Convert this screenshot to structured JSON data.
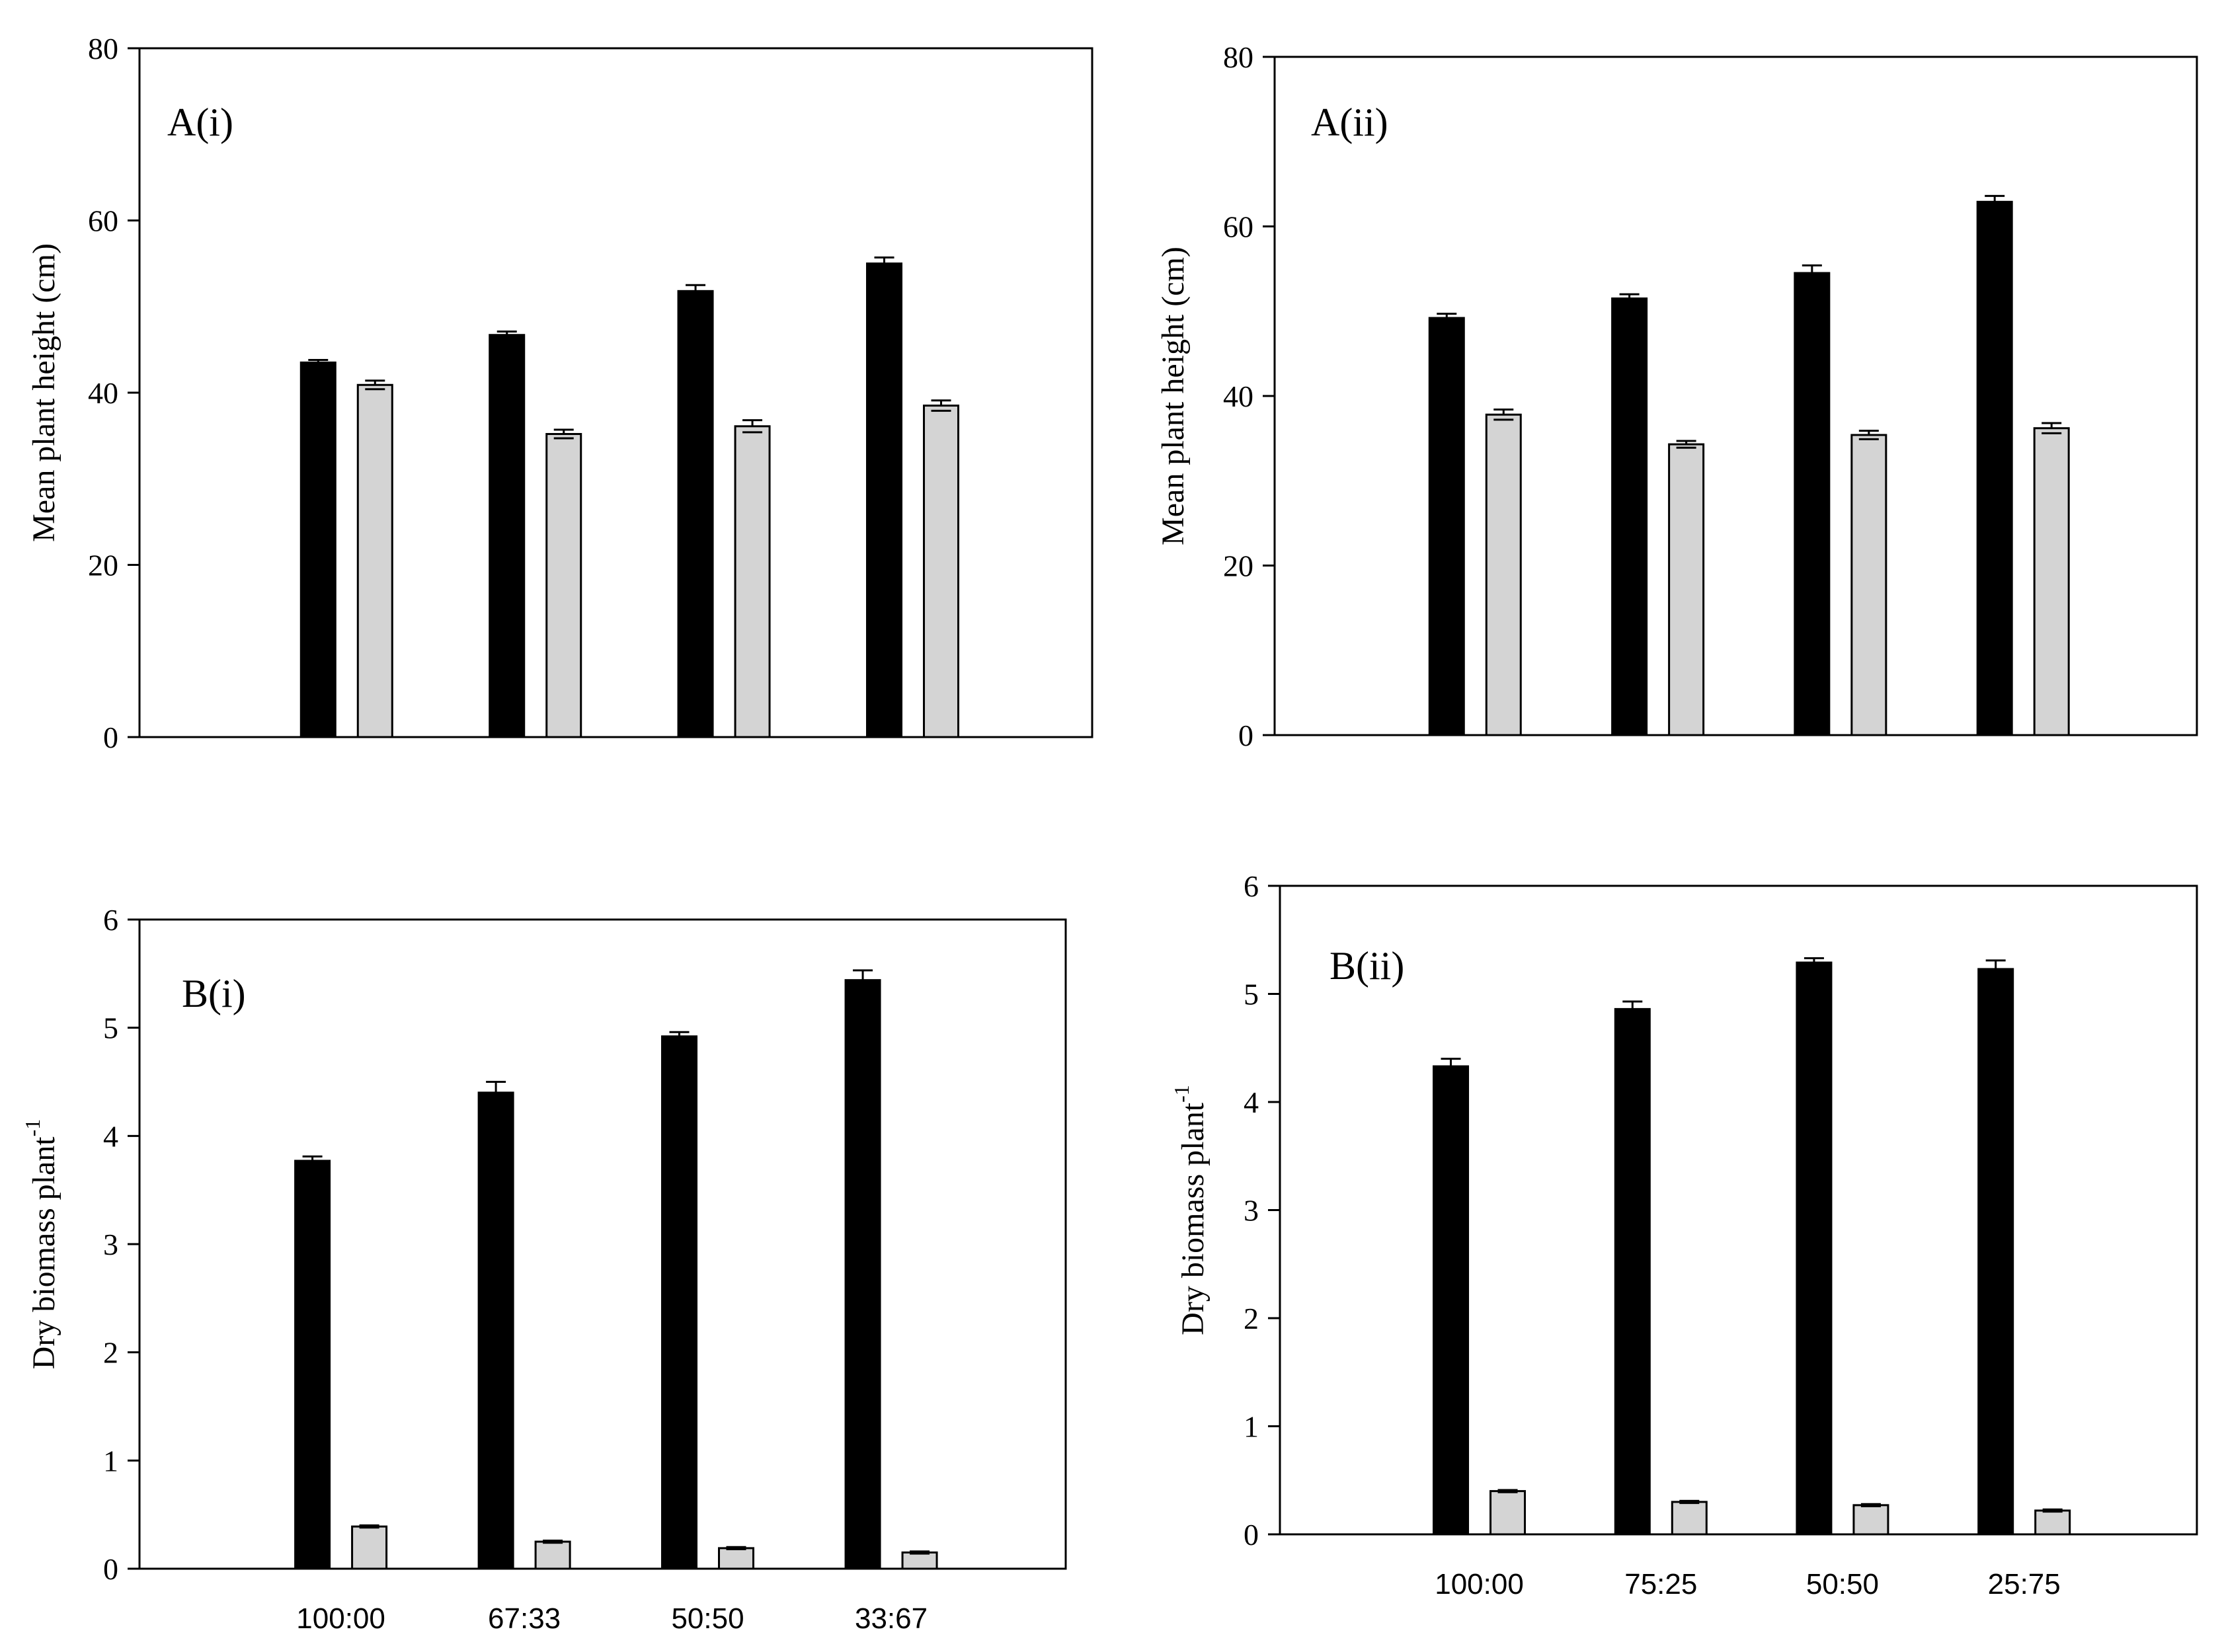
{
  "chart_data": [
    {
      "id": "Ai",
      "type": "bar",
      "title": "A(i)",
      "ylabel": "Mean plant height (cm)",
      "ylabel_superscript": "",
      "xlabel": "",
      "ylim": [
        0,
        80
      ],
      "yticks": [
        "0",
        "20",
        "40",
        "60",
        "80"
      ],
      "categories": [
        "100:00",
        "67:33",
        "50:50",
        "33:67"
      ],
      "show_category_labels": false,
      "series": [
        {
          "name": "dark",
          "color": "#000000",
          "values": [
            43.5,
            46.7,
            51.8,
            55.0
          ],
          "errors": [
            0.3,
            0.4,
            0.7,
            0.7
          ]
        },
        {
          "name": "light",
          "color": "#d4d4d4",
          "values": [
            40.9,
            35.2,
            36.1,
            38.5
          ],
          "errors": [
            0.5,
            0.5,
            0.7,
            0.6
          ]
        }
      ]
    },
    {
      "id": "Aii",
      "type": "bar",
      "title": "A(ii)",
      "ylabel": "Mean plant height (cm)",
      "ylabel_superscript": "",
      "xlabel": "",
      "ylim": [
        0,
        80
      ],
      "yticks": [
        "0",
        "20",
        "40",
        "60",
        "80"
      ],
      "categories": [
        "100:00",
        "75:25",
        "50:50",
        "25:75"
      ],
      "show_category_labels": false,
      "series": [
        {
          "name": "dark",
          "color": "#000000",
          "values": [
            49.2,
            51.5,
            54.5,
            62.9
          ],
          "errors": [
            0.5,
            0.5,
            0.9,
            0.7
          ]
        },
        {
          "name": "light",
          "color": "#d4d4d4",
          "values": [
            37.8,
            34.3,
            35.4,
            36.2
          ],
          "errors": [
            0.6,
            0.4,
            0.5,
            0.6
          ]
        }
      ]
    },
    {
      "id": "Bi",
      "type": "bar",
      "title": "B(i)",
      "ylabel": "Dry biomass plant",
      "ylabel_superscript": "-1",
      "xlabel": "",
      "ylim": [
        0,
        6
      ],
      "yticks": [
        "0",
        "1",
        "2",
        "3",
        "4",
        "5",
        "6"
      ],
      "categories": [
        "100:00",
        "67:33",
        "50:50",
        "33:67"
      ],
      "show_category_labels": true,
      "series": [
        {
          "name": "dark",
          "color": "#000000",
          "values": [
            3.77,
            4.4,
            4.92,
            5.44
          ],
          "errors": [
            0.04,
            0.1,
            0.04,
            0.09
          ]
        },
        {
          "name": "light",
          "color": "#d4d4d4",
          "values": [
            0.39,
            0.25,
            0.19,
            0.15
          ],
          "errors": [
            0.01,
            0.01,
            0.01,
            0.01
          ]
        }
      ]
    },
    {
      "id": "Bii",
      "type": "bar",
      "title": "B(ii)",
      "ylabel": "Dry biomass plant",
      "ylabel_superscript": "-1",
      "xlabel": "",
      "ylim": [
        0,
        6
      ],
      "yticks": [
        "0",
        "1",
        "2",
        "3",
        "4",
        "5",
        "6"
      ],
      "categories": [
        "100:00",
        "75:25",
        "50:50",
        "25:75"
      ],
      "show_category_labels": true,
      "series": [
        {
          "name": "dark",
          "color": "#000000",
          "values": [
            4.33,
            4.86,
            5.29,
            5.23
          ],
          "errors": [
            0.07,
            0.07,
            0.04,
            0.08
          ]
        },
        {
          "name": "light",
          "color": "#d4d4d4",
          "values": [
            0.4,
            0.3,
            0.27,
            0.22
          ],
          "errors": [
            0.01,
            0.01,
            0.01,
            0.01
          ]
        }
      ]
    }
  ]
}
